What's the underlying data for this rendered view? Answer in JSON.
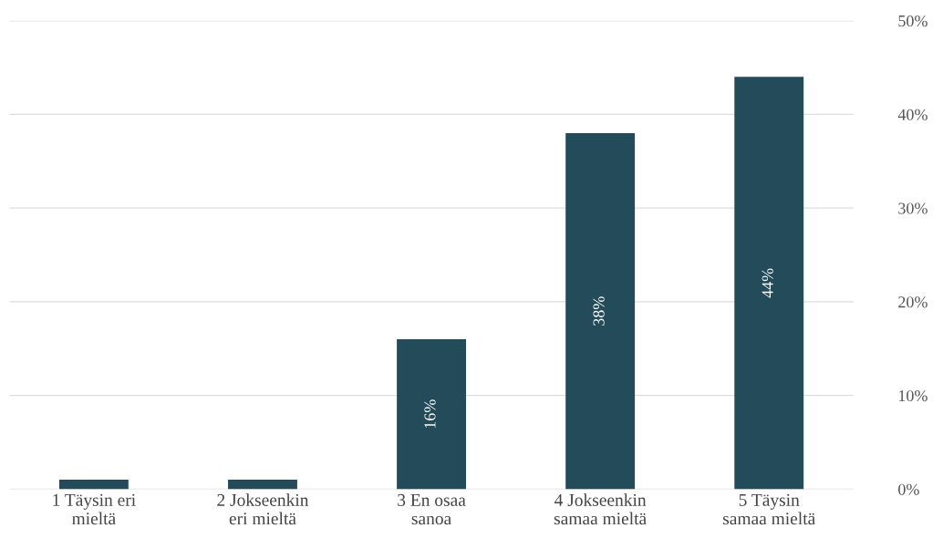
{
  "chart_data": {
    "type": "bar",
    "categories": [
      "1 Täysin eri\nmieltä",
      "2 Jokseenkin\neri mieltä",
      "3 En osaa\nsanoa",
      "4 Jokseenkin\nsamaa mieltä",
      "5 Täysin\nsamaa mieltä"
    ],
    "values": [
      1,
      1,
      16,
      38,
      44
    ],
    "value_labels": [
      null,
      null,
      "16%",
      "38%",
      "44%"
    ],
    "color": "#234b5a",
    "ylim": [
      0,
      50
    ],
    "yticks": [
      {
        "value": 0,
        "label": "0%"
      },
      {
        "value": 10,
        "label": "10%"
      },
      {
        "value": 20,
        "label": "20%"
      },
      {
        "value": 30,
        "label": "30%"
      },
      {
        "value": 40,
        "label": "40%"
      },
      {
        "value": 50,
        "label": "50%"
      }
    ],
    "grid": "y"
  }
}
